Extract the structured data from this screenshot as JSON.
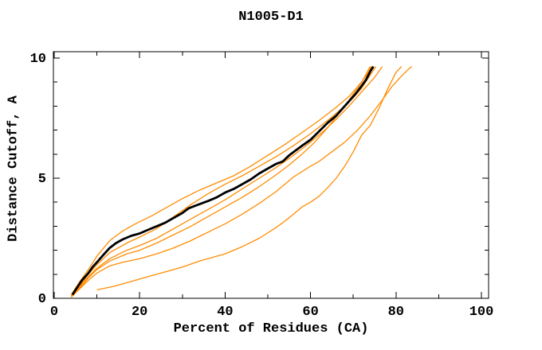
{
  "page": {
    "title": "N1005-D1"
  },
  "chart_data": {
    "type": "line",
    "title": "N1005-D1",
    "xlabel": "Percent of Residues (CA)",
    "ylabel": "Distance Cutoff, A",
    "xlim": [
      0,
      101.5
    ],
    "ylim": [
      0,
      10.3
    ],
    "x_major_ticks": [
      0,
      20,
      40,
      60,
      80,
      100
    ],
    "x_minor_ticks": [
      10,
      30,
      50,
      70,
      90
    ],
    "y_major_ticks": [
      0,
      5,
      10
    ],
    "y_minor_ticks": [
      1,
      2,
      3,
      4,
      6,
      7,
      8,
      9
    ],
    "grid": false,
    "legend": "none",
    "background_color": "#ffffff",
    "axis_color": "#000000",
    "highlight_color": "#000000",
    "other_color": "#ff8c00",
    "series": [
      {
        "name": "orange-curve-1",
        "color": "#ff8c00",
        "width": 1.3,
        "points": [
          [
            4,
            0.15
          ],
          [
            6,
            0.7
          ],
          [
            8,
            1.2
          ],
          [
            10,
            1.75
          ],
          [
            13,
            2.4
          ],
          [
            16,
            2.8
          ],
          [
            19,
            3.1
          ],
          [
            23,
            3.45
          ],
          [
            27,
            3.85
          ],
          [
            30,
            4.15
          ],
          [
            34,
            4.5
          ],
          [
            38,
            4.8
          ],
          [
            42,
            5.1
          ],
          [
            46,
            5.5
          ],
          [
            50,
            5.95
          ],
          [
            54,
            6.4
          ],
          [
            58,
            6.9
          ],
          [
            62,
            7.4
          ],
          [
            66,
            7.95
          ],
          [
            69,
            8.4
          ],
          [
            71,
            8.8
          ],
          [
            73,
            9.25
          ],
          [
            74.3,
            9.65
          ]
        ]
      },
      {
        "name": "orange-curve-2",
        "color": "#ff8c00",
        "width": 1.3,
        "points": [
          [
            4,
            0.1
          ],
          [
            6,
            0.55
          ],
          [
            8,
            1.0
          ],
          [
            10,
            1.4
          ],
          [
            13,
            1.9
          ],
          [
            17,
            2.3
          ],
          [
            20,
            2.55
          ],
          [
            24,
            2.9
          ],
          [
            28,
            3.4
          ],
          [
            32,
            3.9
          ],
          [
            36,
            4.35
          ],
          [
            40,
            4.75
          ],
          [
            44,
            5.1
          ],
          [
            48,
            5.5
          ],
          [
            52,
            5.9
          ],
          [
            56,
            6.35
          ],
          [
            60,
            6.85
          ],
          [
            64,
            7.4
          ],
          [
            67,
            7.85
          ],
          [
            70,
            8.35
          ],
          [
            72,
            8.75
          ],
          [
            74,
            9.3
          ],
          [
            75.3,
            9.65
          ]
        ]
      },
      {
        "name": "orange-curve-3",
        "color": "#ff8c00",
        "width": 1.3,
        "points": [
          [
            4,
            0.1
          ],
          [
            6,
            0.5
          ],
          [
            8,
            0.9
          ],
          [
            10,
            1.25
          ],
          [
            13,
            1.65
          ],
          [
            17,
            2.0
          ],
          [
            20,
            2.2
          ],
          [
            24,
            2.5
          ],
          [
            28,
            2.9
          ],
          [
            32,
            3.3
          ],
          [
            36,
            3.7
          ],
          [
            40,
            4.1
          ],
          [
            44,
            4.55
          ],
          [
            48,
            5.0
          ],
          [
            52,
            5.45
          ],
          [
            56,
            5.95
          ],
          [
            60,
            6.5
          ],
          [
            63,
            6.95
          ],
          [
            66,
            7.45
          ],
          [
            69,
            8.0
          ],
          [
            71,
            8.4
          ],
          [
            73,
            8.8
          ],
          [
            75,
            9.2
          ],
          [
            76.8,
            9.65
          ]
        ]
      },
      {
        "name": "orange-curve-4",
        "color": "#ff8c00",
        "width": 1.3,
        "points": [
          [
            4,
            0.05
          ],
          [
            6,
            0.45
          ],
          [
            8,
            0.85
          ],
          [
            10,
            1.2
          ],
          [
            13,
            1.55
          ],
          [
            17,
            1.85
          ],
          [
            20,
            2.0
          ],
          [
            24,
            2.3
          ],
          [
            28,
            2.65
          ],
          [
            32,
            3.0
          ],
          [
            36,
            3.4
          ],
          [
            40,
            3.8
          ],
          [
            44,
            4.2
          ],
          [
            48,
            4.65
          ],
          [
            52,
            5.15
          ],
          [
            55,
            5.55
          ],
          [
            58,
            6.0
          ],
          [
            61,
            6.5
          ],
          [
            64,
            7.1
          ],
          [
            66,
            7.55
          ],
          [
            68,
            8.0
          ],
          [
            70,
            8.5
          ],
          [
            72,
            9.0
          ],
          [
            73.5,
            9.5
          ],
          [
            74,
            9.65
          ]
        ]
      },
      {
        "name": "orange-curve-5",
        "color": "#ff8c00",
        "width": 1.3,
        "points": [
          [
            4,
            0.05
          ],
          [
            6,
            0.4
          ],
          [
            8,
            0.75
          ],
          [
            10,
            1.05
          ],
          [
            13,
            1.35
          ],
          [
            16,
            1.5
          ],
          [
            20,
            1.65
          ],
          [
            24,
            1.85
          ],
          [
            28,
            2.1
          ],
          [
            32,
            2.4
          ],
          [
            36,
            2.75
          ],
          [
            40,
            3.1
          ],
          [
            44,
            3.5
          ],
          [
            48,
            3.95
          ],
          [
            52,
            4.45
          ],
          [
            56,
            5.05
          ],
          [
            60,
            5.5
          ],
          [
            62,
            5.7
          ],
          [
            65,
            6.1
          ],
          [
            68,
            6.5
          ],
          [
            71,
            7.0
          ],
          [
            74,
            7.6
          ],
          [
            77,
            8.3
          ],
          [
            79,
            8.8
          ],
          [
            81,
            9.2
          ],
          [
            83,
            9.55
          ],
          [
            83.7,
            9.65
          ]
        ]
      },
      {
        "name": "orange-curve-6",
        "color": "#ff8c00",
        "width": 1.3,
        "points": [
          [
            10,
            0.35
          ],
          [
            14,
            0.5
          ],
          [
            18,
            0.7
          ],
          [
            22,
            0.9
          ],
          [
            26,
            1.1
          ],
          [
            30,
            1.3
          ],
          [
            34,
            1.55
          ],
          [
            38,
            1.75
          ],
          [
            40,
            1.85
          ],
          [
            44,
            2.15
          ],
          [
            48,
            2.5
          ],
          [
            52,
            2.95
          ],
          [
            55,
            3.35
          ],
          [
            58,
            3.8
          ],
          [
            60,
            4.0
          ],
          [
            62,
            4.25
          ],
          [
            64,
            4.6
          ],
          [
            66,
            5.0
          ],
          [
            68,
            5.5
          ],
          [
            70,
            6.1
          ],
          [
            72,
            6.8
          ],
          [
            74,
            7.2
          ],
          [
            76,
            7.9
          ],
          [
            78,
            8.7
          ],
          [
            80,
            9.4
          ],
          [
            81.3,
            9.65
          ]
        ]
      },
      {
        "name": "black-highlighted-curve",
        "color": "#000000",
        "width": 2.8,
        "points": [
          [
            4.3,
            0.15
          ],
          [
            5,
            0.35
          ],
          [
            6.5,
            0.75
          ],
          [
            8,
            1.05
          ],
          [
            9,
            1.3
          ],
          [
            10,
            1.5
          ],
          [
            11.5,
            1.8
          ],
          [
            13,
            2.1
          ],
          [
            14.5,
            2.3
          ],
          [
            16,
            2.45
          ],
          [
            18,
            2.6
          ],
          [
            20,
            2.7
          ],
          [
            22,
            2.85
          ],
          [
            24,
            3.0
          ],
          [
            26,
            3.15
          ],
          [
            28,
            3.35
          ],
          [
            30,
            3.55
          ],
          [
            31.5,
            3.75
          ],
          [
            33,
            3.85
          ],
          [
            34.5,
            3.95
          ],
          [
            36,
            4.05
          ],
          [
            38,
            4.2
          ],
          [
            40,
            4.4
          ],
          [
            42,
            4.55
          ],
          [
            44,
            4.75
          ],
          [
            46,
            4.95
          ],
          [
            48,
            5.2
          ],
          [
            50,
            5.4
          ],
          [
            52,
            5.6
          ],
          [
            53.5,
            5.7
          ],
          [
            55,
            5.95
          ],
          [
            56.5,
            6.15
          ],
          [
            58,
            6.35
          ],
          [
            60,
            6.6
          ],
          [
            62,
            6.95
          ],
          [
            64,
            7.3
          ],
          [
            66,
            7.6
          ],
          [
            67.5,
            7.9
          ],
          [
            69,
            8.2
          ],
          [
            70.5,
            8.5
          ],
          [
            72,
            8.85
          ],
          [
            73,
            9.1
          ],
          [
            74,
            9.45
          ],
          [
            74.7,
            9.65
          ]
        ]
      }
    ]
  }
}
